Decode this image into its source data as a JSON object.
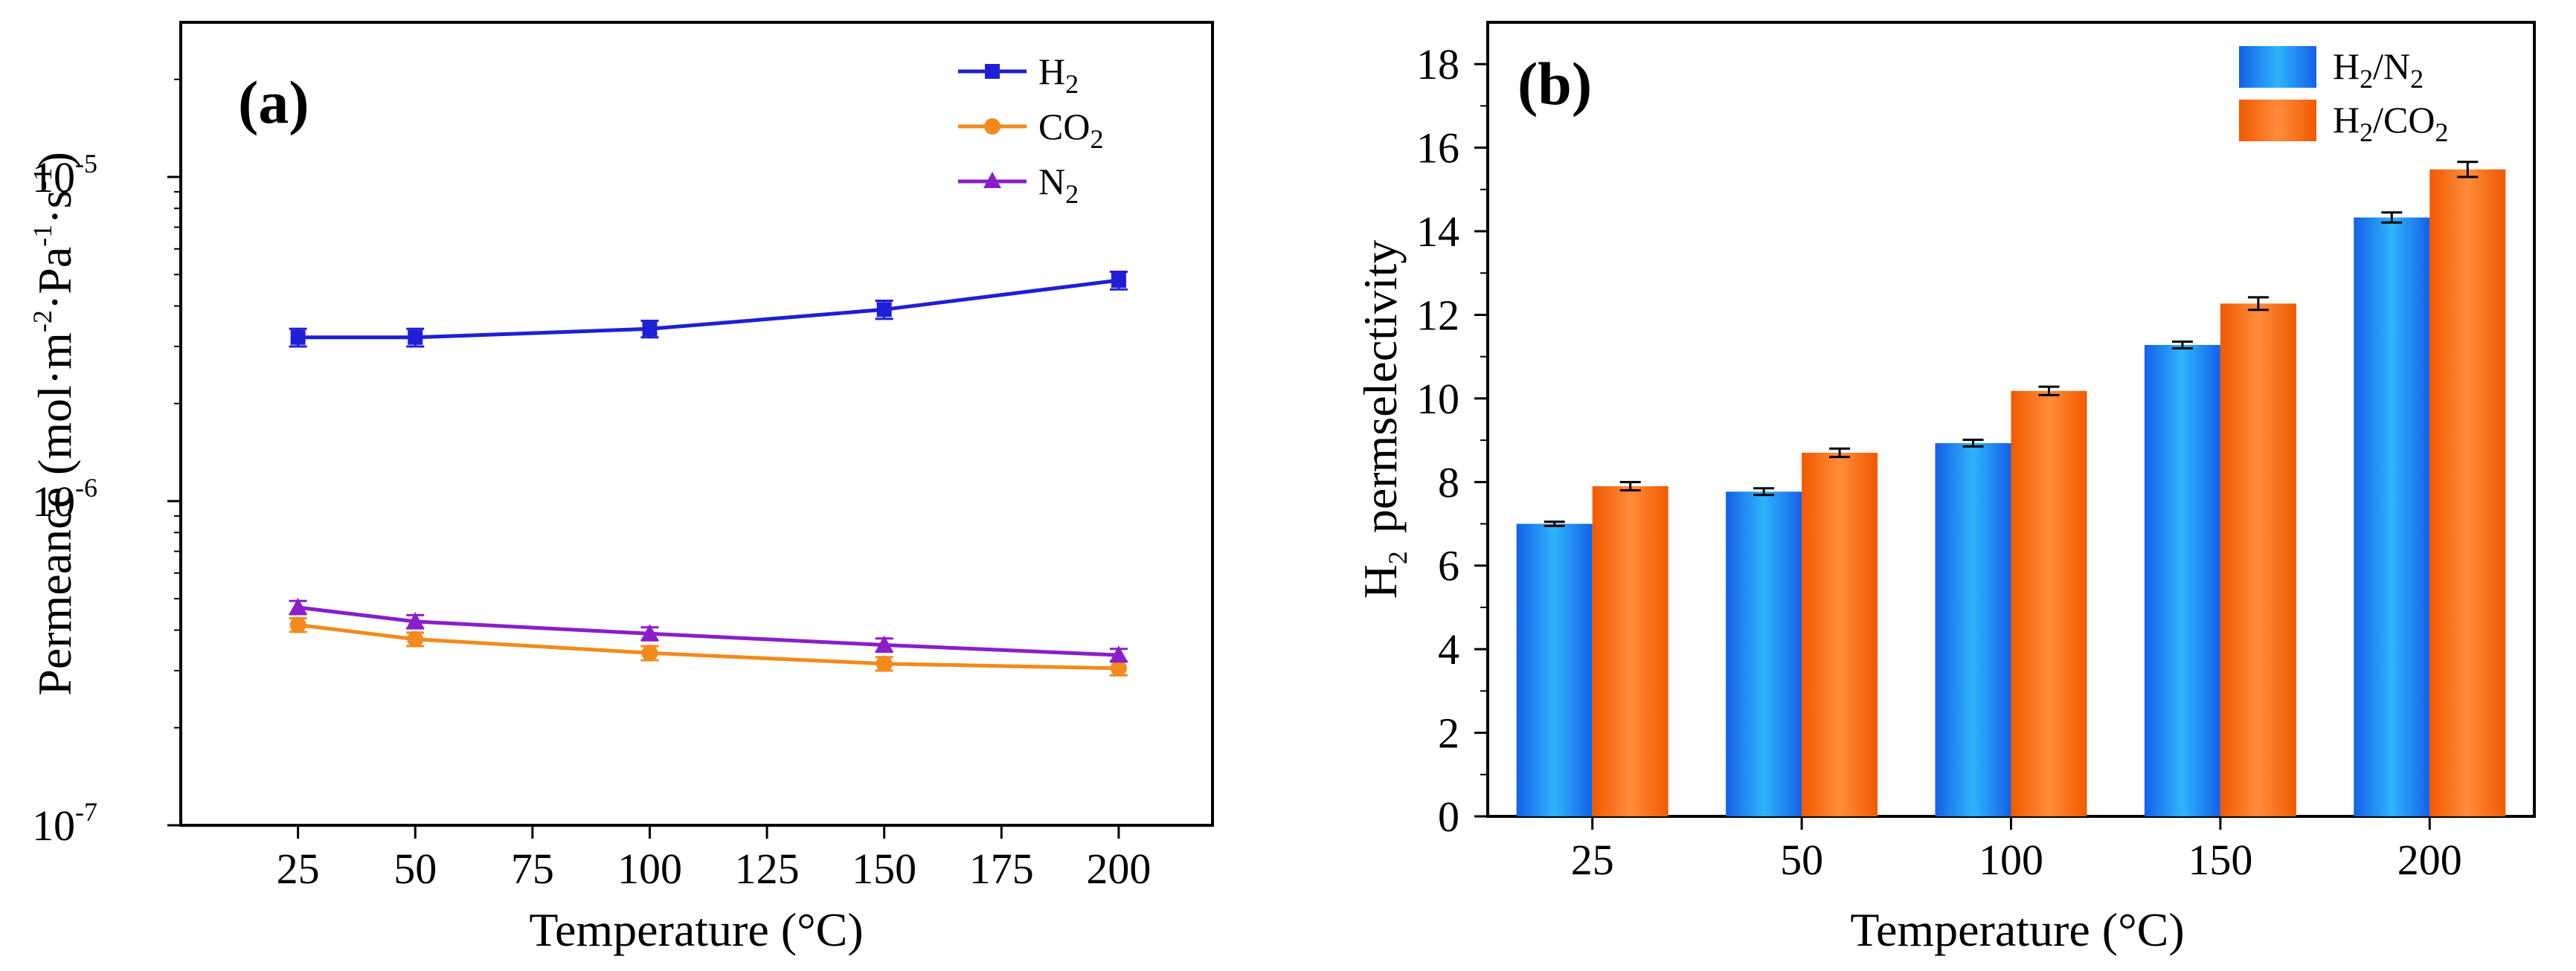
{
  "chart_data": [
    {
      "panel": "(a)",
      "type": "line",
      "xlabel": "Temperature (°C)",
      "ylabel": "Permeance (mol·m-2·Pa-1·s-1)",
      "ylabel_parts": {
        "main": "Permeance (mol·m",
        "e1": "-2",
        "mid": "·Pa",
        "e2": "-1",
        "mid2": "·s",
        "e3": "-1",
        "end": ")"
      },
      "x": [
        25,
        50,
        100,
        150,
        200
      ],
      "xlim": [
        0,
        220
      ],
      "xticks": [
        25,
        50,
        75,
        100,
        125,
        150,
        175,
        200
      ],
      "yscale": "log",
      "ylim": [
        1e-07,
        3e-05
      ],
      "yticks": [
        {
          "value": 1e-07,
          "base": "10",
          "exp": "-7"
        },
        {
          "value": 1e-06,
          "base": "10",
          "exp": "-6"
        },
        {
          "value": 1e-05,
          "base": "10",
          "exp": "-5"
        }
      ],
      "legend_position": "top-right",
      "series": [
        {
          "name": "H2",
          "label_main": "H",
          "label_sub": "2",
          "color": "#1f1fd6",
          "marker": "square",
          "values": [
            3.2e-06,
            3.2e-06,
            3.4e-06,
            3.9e-06,
            4.8e-06
          ],
          "errors": [
            2e-07,
            2e-07,
            2e-07,
            2.5e-07,
            3e-07
          ]
        },
        {
          "name": "CO2",
          "label_main": "CO",
          "label_sub": "2",
          "color": "#f28a1e",
          "marker": "circle",
          "values": [
            4.15e-07,
            3.75e-07,
            3.4e-07,
            3.15e-07,
            3.05e-07
          ],
          "errors": [
            2e-08,
            1.8e-08,
            1.7e-08,
            1.5e-08,
            1.5e-08
          ]
        },
        {
          "name": "N2",
          "label_main": "N",
          "label_sub": "2",
          "color": "#8a1ec8",
          "marker": "triangle",
          "values": [
            4.7e-07,
            4.25e-07,
            3.9e-07,
            3.6e-07,
            3.35e-07
          ],
          "errors": [
            2.2e-08,
            2e-08,
            1.8e-08,
            1.7e-08,
            1.5e-08
          ]
        }
      ]
    },
    {
      "panel": "(b)",
      "type": "bar",
      "xlabel": "Temperature (°C)",
      "ylabel": "H2 permselectivity",
      "ylabel_parts": {
        "main": "H",
        "sub": "2",
        "rest": "permselectivity"
      },
      "categories": [
        "25",
        "50",
        "100",
        "150",
        "200"
      ],
      "ylim": [
        0,
        19
      ],
      "yticks": [
        0,
        2,
        4,
        6,
        8,
        10,
        12,
        14,
        16,
        18
      ],
      "legend_position": "top-right",
      "series": [
        {
          "name": "H2/N2",
          "label_main": "H",
          "label_sub": "2",
          "label_mid": "/N",
          "label_sub2": "2",
          "color_top": "#2aa8f5",
          "color_bottom": "#1554e8",
          "values": [
            7.0,
            7.77,
            8.93,
            11.28,
            14.33
          ],
          "errors": [
            0.05,
            0.08,
            0.08,
            0.08,
            0.12
          ]
        },
        {
          "name": "H2/CO2",
          "label_main": "H",
          "label_sub": "2",
          "label_mid": "/CO",
          "label_sub2": "2",
          "color_top": "#ff8a3a",
          "color_bottom": "#f06000",
          "values": [
            7.9,
            8.7,
            10.18,
            12.27,
            15.48
          ],
          "errors": [
            0.1,
            0.1,
            0.1,
            0.15,
            0.18
          ]
        }
      ]
    }
  ]
}
